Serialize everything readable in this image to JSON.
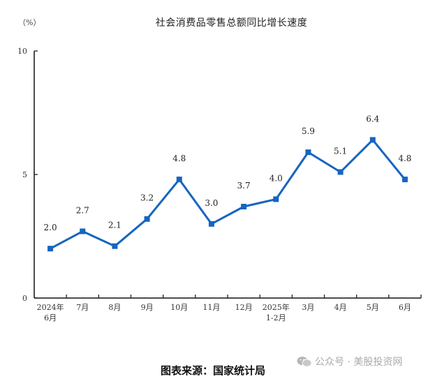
{
  "chart_data": {
    "type": "line",
    "title": "社会消费品零售总额同比增长速度",
    "unit_label": "（%）",
    "xlabel": "",
    "ylabel": "%",
    "ylim": [
      0,
      10
    ],
    "yticks": [
      0,
      5,
      10
    ],
    "grid": false,
    "categories": [
      "2024年\n6月",
      "7月",
      "8月",
      "9月",
      "10月",
      "11月",
      "12月",
      "2025年\n1-2月",
      "3月",
      "4月",
      "5月",
      "6月"
    ],
    "series": [
      {
        "name": "社会消费品零售总额同比增长速度",
        "color": "#1565c0",
        "marker": "square",
        "values": [
          2.0,
          2.7,
          2.1,
          3.2,
          4.8,
          3.0,
          3.7,
          4.0,
          5.9,
          5.1,
          6.4,
          4.8
        ],
        "data_labels": [
          "2.0",
          "2.7",
          "2.1",
          "3.2",
          "4.8",
          "3.0",
          "3.7",
          "4.0",
          "5.9",
          "5.1",
          "6.4",
          "4.8"
        ]
      }
    ]
  },
  "footer": {
    "source": "图表来源：国家统计局",
    "watermark": "公众号 · 美股投资网"
  }
}
